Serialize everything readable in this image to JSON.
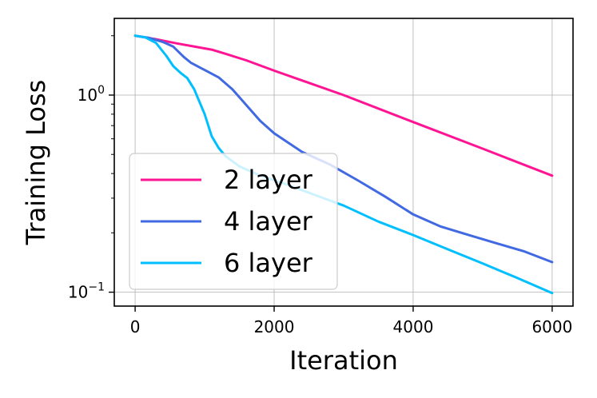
{
  "chart_data": {
    "type": "line",
    "title": "",
    "xlabel": "Iteration",
    "ylabel": "Training Loss",
    "xlim": [
      -300,
      6300
    ],
    "ylim": [
      0.085,
      2.45
    ],
    "yscale": "log",
    "grid": true,
    "legend_position": "lower-left",
    "x_ticks": [
      {
        "value": 0,
        "label": "0"
      },
      {
        "value": 2000,
        "label": "2000"
      },
      {
        "value": 4000,
        "label": "4000"
      },
      {
        "value": 6000,
        "label": "6000"
      }
    ],
    "y_ticks": [
      {
        "value": 1.0,
        "base": "10",
        "exp": "0"
      },
      {
        "value": 0.1,
        "base": "10",
        "exp": "−1"
      }
    ],
    "series": [
      {
        "name": "2 layer",
        "color": "#ff1493",
        "points": [
          [
            0,
            2.0
          ],
          [
            300,
            1.92
          ],
          [
            600,
            1.83
          ],
          [
            900,
            1.75
          ],
          [
            1100,
            1.7
          ],
          [
            1300,
            1.62
          ],
          [
            1600,
            1.5
          ],
          [
            2000,
            1.33
          ],
          [
            3000,
            1.0
          ],
          [
            4000,
            0.73
          ],
          [
            5000,
            0.535
          ],
          [
            6000,
            0.39
          ]
        ]
      },
      {
        "name": "4 layer",
        "color": "#4169e1",
        "points": [
          [
            0,
            2.0
          ],
          [
            200,
            1.95
          ],
          [
            400,
            1.86
          ],
          [
            550,
            1.76
          ],
          [
            700,
            1.56
          ],
          [
            800,
            1.46
          ],
          [
            1000,
            1.34
          ],
          [
            1200,
            1.23
          ],
          [
            1400,
            1.07
          ],
          [
            1600,
            0.89
          ],
          [
            1800,
            0.74
          ],
          [
            2000,
            0.64
          ],
          [
            2400,
            0.515
          ],
          [
            2800,
            0.445
          ],
          [
            3200,
            0.37
          ],
          [
            3600,
            0.305
          ],
          [
            4000,
            0.248
          ],
          [
            4400,
            0.215
          ],
          [
            4800,
            0.195
          ],
          [
            5200,
            0.177
          ],
          [
            5600,
            0.161
          ],
          [
            6000,
            0.142
          ]
        ]
      },
      {
        "name": "6 layer",
        "color": "#00bfff",
        "points": [
          [
            0,
            2.0
          ],
          [
            150,
            1.96
          ],
          [
            300,
            1.84
          ],
          [
            450,
            1.58
          ],
          [
            550,
            1.4
          ],
          [
            650,
            1.3
          ],
          [
            750,
            1.22
          ],
          [
            850,
            1.07
          ],
          [
            1000,
            0.8
          ],
          [
            1100,
            0.62
          ],
          [
            1200,
            0.54
          ],
          [
            1300,
            0.49
          ],
          [
            1500,
            0.435
          ],
          [
            1800,
            0.39
          ],
          [
            2200,
            0.35
          ],
          [
            2600,
            0.31
          ],
          [
            3000,
            0.275
          ],
          [
            3500,
            0.228
          ],
          [
            4000,
            0.195
          ],
          [
            4500,
            0.165
          ],
          [
            5000,
            0.14
          ],
          [
            5500,
            0.118
          ],
          [
            6000,
            0.099
          ]
        ]
      }
    ]
  }
}
